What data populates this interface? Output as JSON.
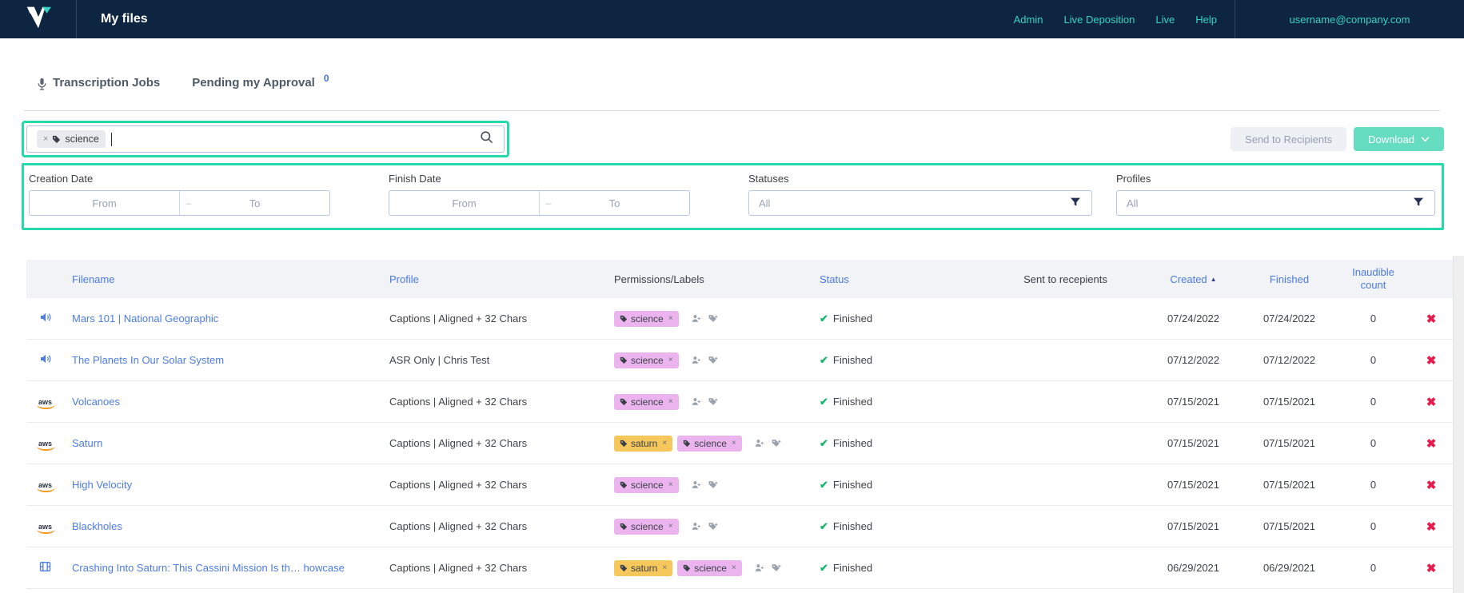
{
  "navbar": {
    "title": "My files",
    "links": [
      "Admin",
      "Live Deposition",
      "Live",
      "Help"
    ],
    "user_email": "username@company.com"
  },
  "tabs": {
    "transcription_jobs": "Transcription Jobs",
    "pending_my_approval": "Pending my Approval",
    "pending_badge": "0"
  },
  "toolbar": {
    "search_chip": "science",
    "send_to_recipients": "Send to Recipients",
    "download": "Download"
  },
  "filters": {
    "creation_date": {
      "label": "Creation Date",
      "from": "From",
      "dash": "–",
      "to": "To"
    },
    "finish_date": {
      "label": "Finish Date",
      "from": "From",
      "dash": "–",
      "to": "To"
    },
    "statuses": {
      "label": "Statuses",
      "value": "All"
    },
    "profiles": {
      "label": "Profiles",
      "value": "All"
    }
  },
  "icons": {
    "sort_asc": "▲",
    "check": "✔",
    "delete_x": "✖",
    "chip_remove": "×"
  },
  "table": {
    "headers": {
      "filename": "Filename",
      "profile": "Profile",
      "permissions": "Permissions/Labels",
      "status": "Status",
      "sent": "Sent to recepients",
      "created": "Created",
      "finished": "Finished",
      "inaudible": "Inaudible count"
    },
    "label_colors": {
      "science": "#ecb4ef",
      "saturn": "#f6c75b"
    },
    "rows": [
      {
        "icon": "audio",
        "filename": "Mars 101 | National Geographic",
        "profile": "Captions | Aligned + 32 Chars",
        "labels": [
          "science"
        ],
        "status": "Finished",
        "created": "07/24/2022",
        "finished": "07/24/2022",
        "inaudible": "0"
      },
      {
        "icon": "audio",
        "filename": "The Planets In Our Solar System",
        "profile": "ASR Only | Chris Test",
        "labels": [
          "science"
        ],
        "status": "Finished",
        "created": "07/12/2022",
        "finished": "07/12/2022",
        "inaudible": "0"
      },
      {
        "icon": "aws",
        "filename": "Volcanoes",
        "profile": "Captions | Aligned + 32 Chars",
        "labels": [
          "science"
        ],
        "status": "Finished",
        "created": "07/15/2021",
        "finished": "07/15/2021",
        "inaudible": "0"
      },
      {
        "icon": "aws",
        "filename": "Saturn",
        "profile": "Captions | Aligned + 32 Chars",
        "labels": [
          "saturn",
          "science"
        ],
        "status": "Finished",
        "created": "07/15/2021",
        "finished": "07/15/2021",
        "inaudible": "0"
      },
      {
        "icon": "aws",
        "filename": "High Velocity",
        "profile": "Captions | Aligned + 32 Chars",
        "labels": [
          "science"
        ],
        "status": "Finished",
        "created": "07/15/2021",
        "finished": "07/15/2021",
        "inaudible": "0"
      },
      {
        "icon": "aws",
        "filename": "Blackholes",
        "profile": "Captions | Aligned + 32 Chars",
        "labels": [
          "science"
        ],
        "status": "Finished",
        "created": "07/15/2021",
        "finished": "07/15/2021",
        "inaudible": "0"
      },
      {
        "icon": "video",
        "filename": "Crashing Into Saturn: This Cassini Mission Is th… howcase",
        "profile": "Captions | Aligned + 32 Chars",
        "labels": [
          "saturn",
          "science"
        ],
        "status": "Finished",
        "created": "06/29/2021",
        "finished": "06/29/2021",
        "inaudible": "0"
      }
    ]
  },
  "colors": {
    "navbar_bg": "#0d2540",
    "accent_teal": "#35d3c2",
    "highlight_green": "#26d9ab",
    "link_blue": "#4d7ce4",
    "download_bg": "#66dcc1",
    "delete_red": "#e81b4f",
    "status_green": "#1fb56f"
  }
}
